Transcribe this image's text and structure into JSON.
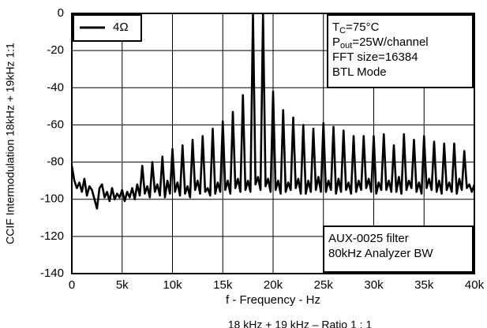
{
  "chart_data": {
    "type": "line",
    "y_label": "CCIF Intermodulation 18kHz + 19kHz 1:1",
    "x_label": "f - Frequency - Hz",
    "caption": "18 kHz + 19 kHz – Ratio 1 : 1",
    "legend": "upper left",
    "grid": true,
    "xlim": [
      0,
      40000
    ],
    "ylim": [
      -140,
      0
    ],
    "xticks": [
      0,
      {
        "value": 5000,
        "label": "5k"
      },
      {
        "value": 10000,
        "label": "10k"
      },
      {
        "value": 15000,
        "label": "15k"
      },
      {
        "value": 20000,
        "label": "20k"
      },
      {
        "value": 25000,
        "label": "25k"
      },
      {
        "value": 30000,
        "label": "30k"
      },
      {
        "value": 35000,
        "label": "35k"
      },
      {
        "value": 40000,
        "label": "40k"
      }
    ],
    "yticks": [
      -140,
      -120,
      -100,
      -80,
      -60,
      -40,
      -20,
      0
    ],
    "annotations": [
      {
        "lines": [
          [
            {
              "t": "T"
            },
            {
              "t": "C",
              "sub": true
            },
            {
              "t": "=75°C"
            }
          ],
          [
            {
              "t": "P"
            },
            {
              "t": "out",
              "sub": true
            },
            {
              "t": "=25W/channel"
            }
          ],
          [
            {
              "t": "FFT size=16384"
            }
          ],
          [
            {
              "t": "BTL Mode"
            }
          ]
        ]
      },
      {
        "lines": [
          [
            {
              "t": "AUX-0025 filter"
            }
          ],
          [
            {
              "t": "80kHz Analyzer BW"
            }
          ]
        ]
      }
    ],
    "x": [
      0,
      250,
      500,
      750,
      1000,
      1250,
      1500,
      1750,
      2000,
      2250,
      2500,
      2750,
      3000,
      3250,
      3500,
      3750,
      4000,
      4250,
      4500,
      4750,
      5000,
      5250,
      5500,
      5750,
      6000,
      6250,
      6500,
      6750,
      7000,
      7250,
      7500,
      7750,
      8000,
      8250,
      8500,
      8750,
      9000,
      9250,
      9500,
      9750,
      10000,
      10250,
      10500,
      10750,
      11000,
      11250,
      11500,
      11750,
      12000,
      12250,
      12500,
      12750,
      13000,
      13250,
      13500,
      13750,
      14000,
      14250,
      14500,
      14750,
      15000,
      15250,
      15500,
      15750,
      16000,
      16250,
      16500,
      16750,
      17000,
      17250,
      17500,
      17750,
      18000,
      18250,
      18500,
      18750,
      19000,
      19250,
      19500,
      19750,
      20000,
      20250,
      20500,
      20750,
      21000,
      21250,
      21500,
      21750,
      22000,
      22250,
      22500,
      22750,
      23000,
      23250,
      23500,
      23750,
      24000,
      24250,
      24500,
      24750,
      25000,
      25250,
      25500,
      25750,
      26000,
      26250,
      26500,
      26750,
      27000,
      27250,
      27500,
      27750,
      28000,
      28250,
      28500,
      28750,
      29000,
      29250,
      29500,
      29750,
      30000,
      30250,
      30500,
      30750,
      31000,
      31250,
      31500,
      31750,
      32000,
      32250,
      32500,
      32750,
      33000,
      33250,
      33500,
      33750,
      34000,
      34250,
      34500,
      34750,
      35000,
      35250,
      35500,
      35750,
      36000,
      36250,
      36500,
      36750,
      37000,
      37250,
      37500,
      37750,
      38000,
      38250,
      38500,
      38750,
      39000,
      39250,
      39500,
      39750,
      40000
    ],
    "series": [
      {
        "name": "4Ω",
        "color": "#000000",
        "values": [
          -82,
          -90,
          -94,
          -91,
          -96,
          -89,
          -98,
          -93,
          -95,
          -100,
          -105,
          -94,
          -92,
          -99,
          -96,
          -101,
          -94,
          -100,
          -97,
          -99,
          -95,
          -101,
          -96,
          -99,
          -94,
          -100,
          -92,
          -98,
          -82,
          -97,
          -93,
          -99,
          -80,
          -96,
          -92,
          -98,
          -77,
          -99,
          -90,
          -97,
          -73,
          -96,
          -91,
          -98,
          -71,
          -97,
          -93,
          -99,
          -68,
          -95,
          -90,
          -97,
          -66,
          -96,
          -94,
          -98,
          -62,
          -97,
          -91,
          -96,
          -58,
          -95,
          -90,
          -97,
          -53,
          -94,
          -89,
          -96,
          -44,
          -95,
          -90,
          -96,
          0,
          -92,
          -88,
          -95,
          0,
          -93,
          -89,
          -96,
          -42,
          -95,
          -90,
          -97,
          -52,
          -96,
          -91,
          -95,
          -56,
          -94,
          -89,
          -97,
          -60,
          -97,
          -90,
          -96,
          -62,
          -95,
          -88,
          -96,
          -59,
          -96,
          -90,
          -95,
          -61,
          -97,
          -89,
          -96,
          -63,
          -95,
          -91,
          -97,
          -66,
          -96,
          -90,
          -95,
          -66,
          -94,
          -89,
          -96,
          -66,
          -97,
          -91,
          -95,
          -65,
          -95,
          -90,
          -96,
          -71,
          -96,
          -88,
          -97,
          -65,
          -95,
          -90,
          -94,
          -68,
          -96,
          -91,
          -97,
          -66,
          -94,
          -89,
          -95,
          -69,
          -96,
          -90,
          -97,
          -70,
          -95,
          -91,
          -96,
          -70,
          -97,
          -89,
          -95,
          -74,
          -94,
          -92,
          -96,
          -92
        ]
      }
    ]
  }
}
